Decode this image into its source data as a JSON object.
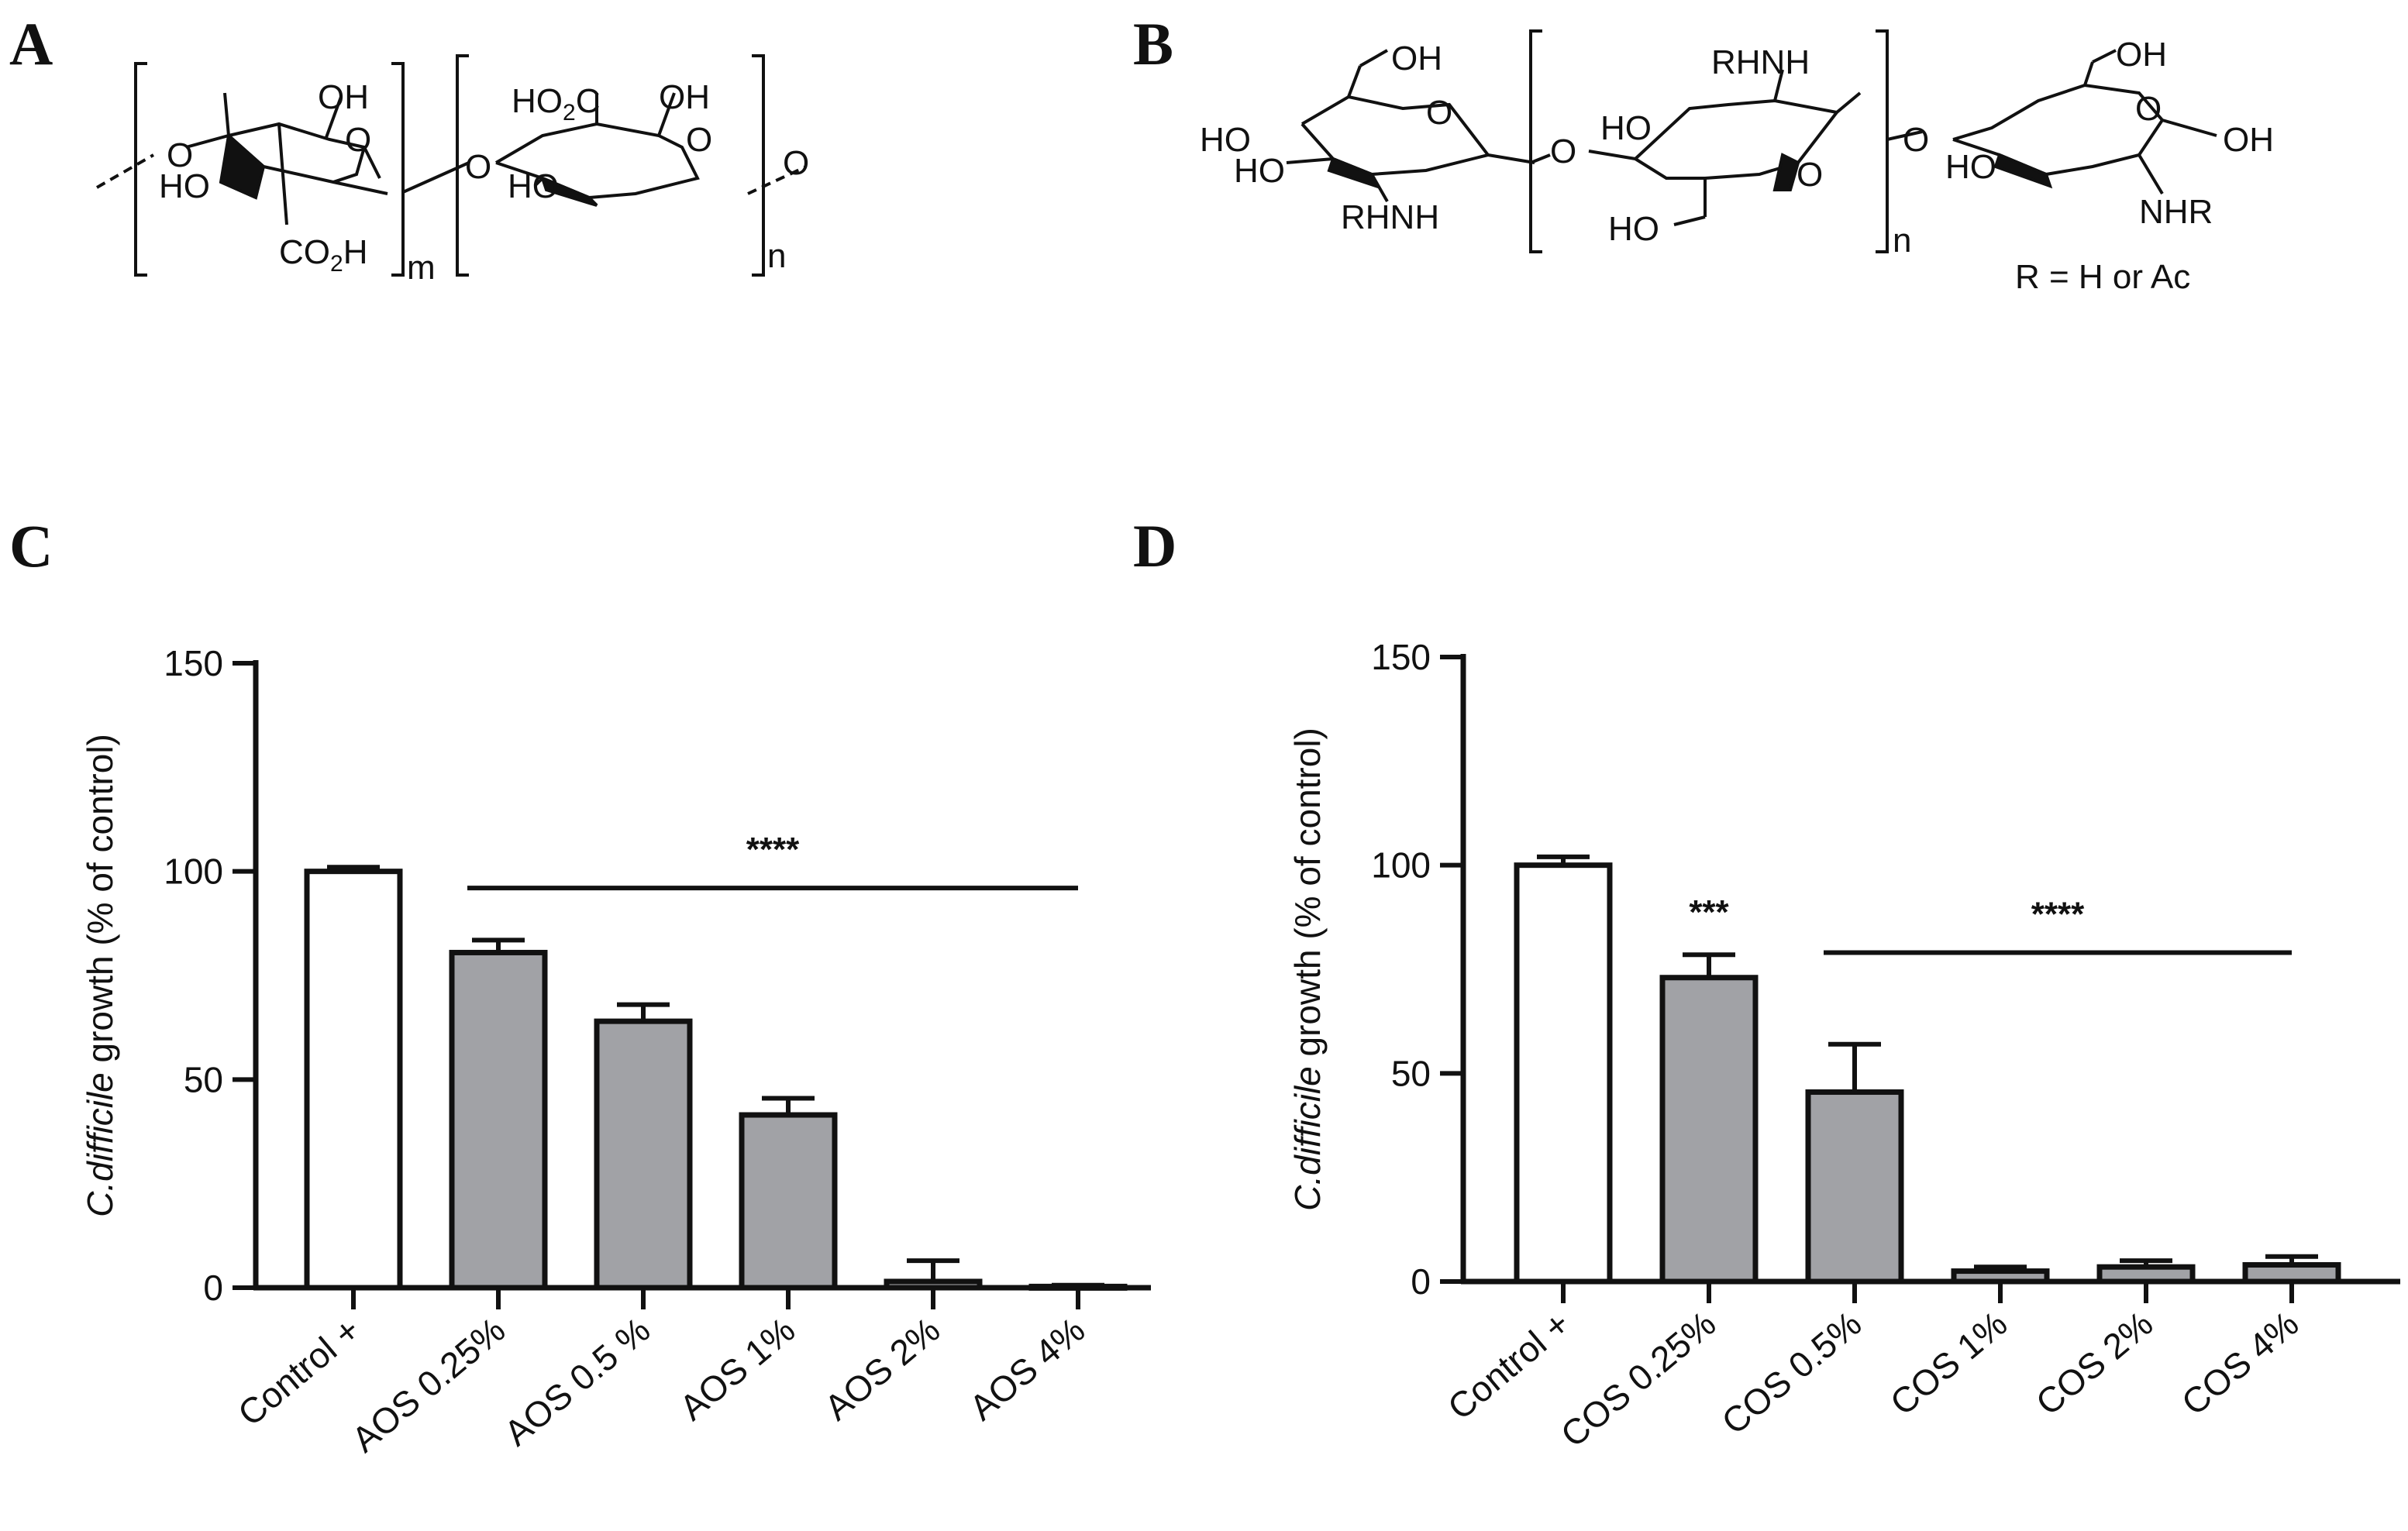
{
  "panels": {
    "a": "A",
    "b": "B",
    "c": "C",
    "d": "D"
  },
  "structure_a": {
    "oh_top_1": "OH",
    "ring_o_1": "O",
    "o_left": "O",
    "ho_left": "HO",
    "co2h": "CO",
    "co2h_sub": "2",
    "co2h_end": "H",
    "m": "m",
    "o_link": "O",
    "ho2c": "HO",
    "ho2c_sub": "2",
    "ho2c_end": "C",
    "oh_top_2": "OH",
    "ring_o_2": "O",
    "ho_mid": "HO",
    "o_right": "O",
    "n": "n"
  },
  "structure_b": {
    "oh_1": "OH",
    "ho_1": "HO",
    "ho_2": "HO",
    "ring_o_1": "O",
    "rhnh_1": "RHNH",
    "o_link_1": "O",
    "rhnh_2": "RHNH",
    "ho_3": "HO",
    "ring_o_2": "O",
    "ho_4": "HO",
    "n": "n",
    "o_link_2": "O",
    "oh_2": "OH",
    "ho_5": "HO",
    "ring_o_3": "O",
    "oh_3": "OH",
    "nhr": "NHR",
    "r_def": "R = H or Ac"
  },
  "chart_data": [
    {
      "type": "bar",
      "panel": "C",
      "ylabel_italic": "C.difficile",
      "ylabel_rest": " growth (% of control)",
      "ylim": [
        0,
        150
      ],
      "yticks": [
        0,
        50,
        100,
        150
      ],
      "categories": [
        "Control +",
        "AOS 0.25%",
        "AOS 0.5 %",
        "AOS 1%",
        "AOS 2%",
        "AOS 4%"
      ],
      "values": [
        100,
        80.5,
        64,
        41.5,
        1.5,
        0.3
      ],
      "errors": [
        1,
        3,
        4,
        4,
        5,
        0.3
      ],
      "fills": [
        "#ffffff",
        "#a1a2a6",
        "#a1a2a6",
        "#a1a2a6",
        "#a1a2a6",
        "#a1a2a6"
      ],
      "significance": [
        {
          "label": "****",
          "from": 1,
          "to": 5,
          "y": 96
        }
      ]
    },
    {
      "type": "bar",
      "panel": "D",
      "ylabel_italic": "C.difficile",
      "ylabel_rest": " growth (% of control)",
      "ylim": [
        0,
        150
      ],
      "yticks": [
        0,
        50,
        100,
        150
      ],
      "categories": [
        "Control +",
        "COS 0.25%",
        "COS 0.5%",
        "COS 1%",
        "COS 2%",
        "COS 4%"
      ],
      "values": [
        100,
        73,
        45.5,
        2.5,
        3.5,
        4
      ],
      "errors": [
        2,
        5.5,
        11.5,
        1,
        1.5,
        2
      ],
      "fills": [
        "#ffffff",
        "#a1a2a6",
        "#a1a2a6",
        "#a1a2a6",
        "#a1a2a6",
        "#a1a2a6"
      ],
      "significance": [
        {
          "label": "***",
          "from": 1,
          "to": 1,
          "y": null
        },
        {
          "label": "****",
          "from": 2,
          "to": 5,
          "y": 79
        }
      ]
    }
  ]
}
